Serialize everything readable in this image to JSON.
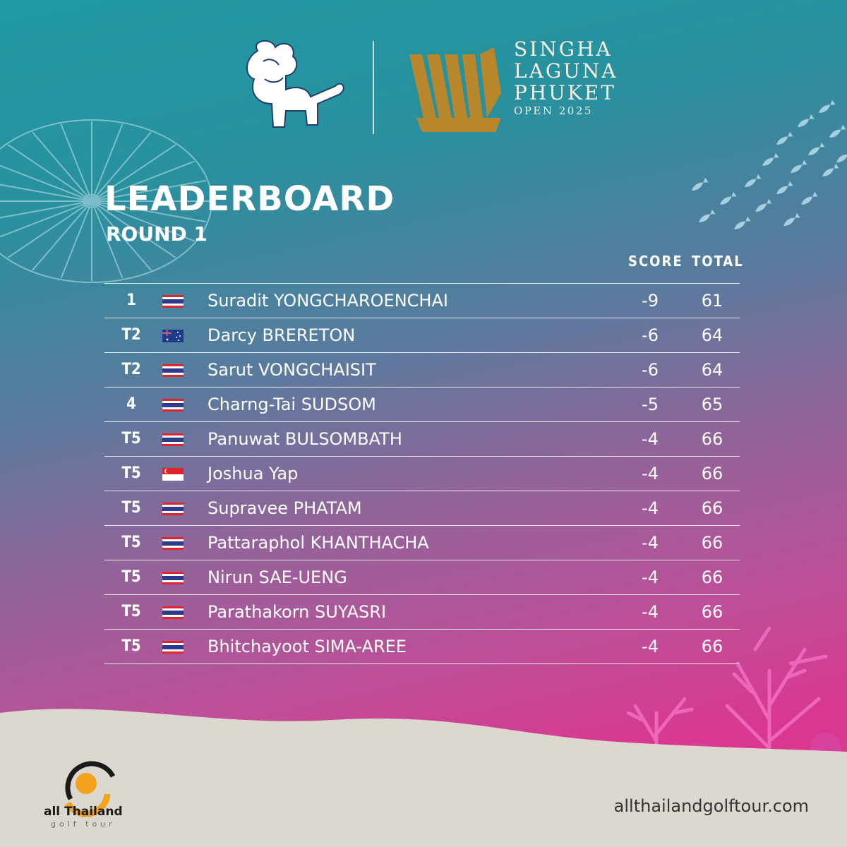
{
  "event": {
    "title_lines": [
      "SINGHA",
      "LAGUNA",
      "PHUKET"
    ],
    "subtitle": "OPEN 2025"
  },
  "heading": "LEADERBOARD",
  "subheading": "ROUND 1",
  "columns": {
    "score": "SCORE",
    "total": "TOTAL"
  },
  "rows": [
    {
      "pos": "1",
      "flag": "thailand-flag",
      "name": "Suradit YONGCHAROENCHAI",
      "score": "-9",
      "total": "61"
    },
    {
      "pos": "T2",
      "flag": "australia-flag",
      "name": "Darcy BRERETON",
      "score": "-6",
      "total": "64"
    },
    {
      "pos": "T2",
      "flag": "thailand-flag",
      "name": "Sarut VONGCHAISIT",
      "score": "-6",
      "total": "64"
    },
    {
      "pos": "4",
      "flag": "thailand-flag",
      "name": "Charng-Tai SUDSOM",
      "score": "-5",
      "total": "65"
    },
    {
      "pos": "T5",
      "flag": "thailand-flag",
      "name": "Panuwat BULSOMBATH",
      "score": "-4",
      "total": "66"
    },
    {
      "pos": "T5",
      "flag": "singapore-flag",
      "name": "Joshua Yap",
      "score": "-4",
      "total": "66"
    },
    {
      "pos": "T5",
      "flag": "thailand-flag",
      "name": "Supravee PHATAM",
      "score": "-4",
      "total": "66"
    },
    {
      "pos": "T5",
      "flag": "thailand-flag",
      "name": "Pattaraphol KHANTHACHA",
      "score": "-4",
      "total": "66"
    },
    {
      "pos": "T5",
      "flag": "thailand-flag",
      "name": "Nirun SAE-UENG",
      "score": "-4",
      "total": "66"
    },
    {
      "pos": "T5",
      "flag": "thailand-flag",
      "name": "Parathakorn SUYASRI",
      "score": "-4",
      "total": "66"
    },
    {
      "pos": "T5",
      "flag": "thailand-flag",
      "name": "Bhitchayoot SIMA-AREE",
      "score": "-4",
      "total": "66"
    }
  ],
  "footer": {
    "tour_name": "all Thailand",
    "tour_sub": "golf tour",
    "website": "allthailandgolftour.com"
  },
  "colors": {
    "gradient_top": "#1f9aa2",
    "gradient_bottom": "#e0348c",
    "gold": "#b8862b",
    "sand": "#dcd8cf",
    "text": "#ffffff"
  }
}
